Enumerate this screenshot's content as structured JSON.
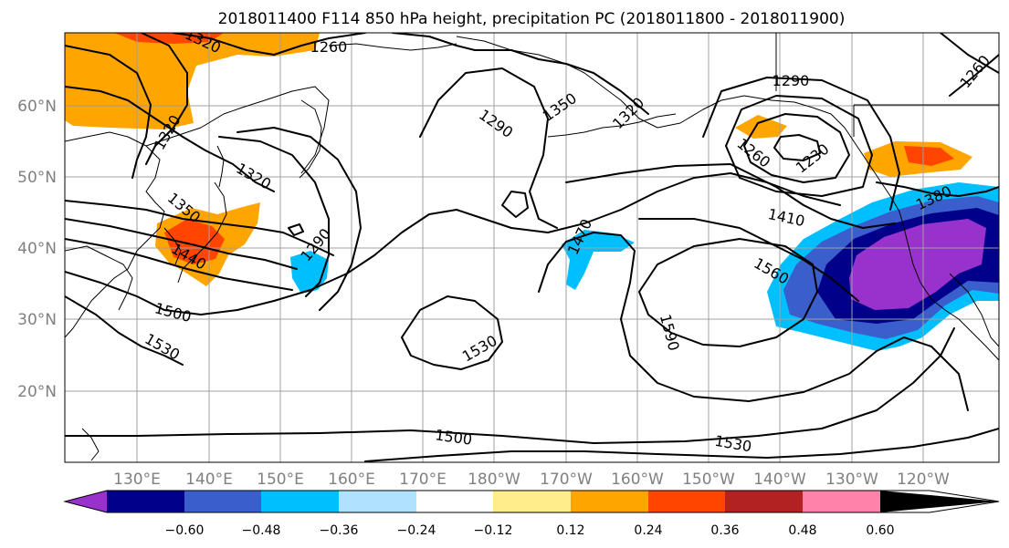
{
  "title": "2018011400 F114 850 hPa height, precipitation PC (2018011800 - 2018011900)",
  "lon_ticks": [
    "130°E",
    "140°E",
    "150°E",
    "160°E",
    "170°E",
    "180°W",
    "170°W",
    "160°W",
    "150°W",
    "140°W",
    "130°W",
    "120°W"
  ],
  "lat_ticks": [
    "60°N",
    "50°N",
    "40°N",
    "30°N",
    "20°N"
  ],
  "contour_labels": [
    "1260",
    "1290",
    "1350",
    "1320",
    "1290",
    "1260",
    "1230",
    "1320",
    "1320",
    "1350",
    "1290",
    "1410",
    "1560",
    "1470",
    "1440",
    "1500",
    "1530",
    "1530",
    "1590",
    "1500",
    "1530",
    "1380",
    "1260",
    "1320"
  ],
  "colorbar": {
    "ticks": [
      "−0.60",
      "−0.48",
      "−0.36",
      "−0.24",
      "−0.12",
      "0.12",
      "0.24",
      "0.36",
      "0.48",
      "0.60"
    ],
    "colors": [
      "#9932cc",
      "#00008b",
      "#3a5fcd",
      "#00bfff",
      "#b0e2ff",
      "#ffffff",
      "#ffec8b",
      "#ffa500",
      "#ff4500",
      "#b22222",
      "#ff82ab"
    ]
  },
  "fill_colors": {
    "pos_024": "#ffa500",
    "pos_036": "#ff4500",
    "pos_012": "#ffec8b",
    "neg_012": "#b0e2ff",
    "neg_024": "#00bfff",
    "neg_036": "#3a5fcd",
    "neg_048": "#00008b",
    "neg_060": "#9932cc"
  }
}
